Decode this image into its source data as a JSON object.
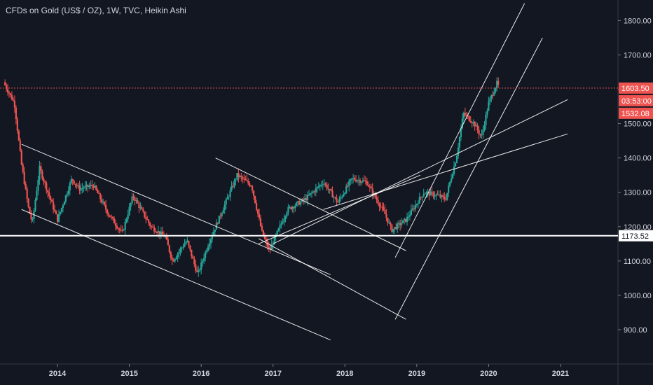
{
  "header": {
    "title": "CFDs on Gold (US$ / OZ), 1W, TVC, Heikin Ashi"
  },
  "colors": {
    "background": "#131722",
    "up": "#26a69a",
    "down": "#ef5350",
    "axis_text": "#d1d4dc",
    "drawing": "#ffffff",
    "price_line": "#ef5350"
  },
  "chart_data": {
    "type": "candlestick",
    "style": "Heikin Ashi",
    "timeframe": "1W",
    "symbol": "CFDs on Gold (US$ / OZ)",
    "source": "TVC",
    "x_ticks": [
      "2014",
      "2015",
      "2016",
      "2017",
      "2018",
      "2019",
      "2020",
      "2021"
    ],
    "y_ticks": [
      900,
      1000,
      1100,
      1200,
      1300,
      1400,
      1500,
      1600,
      1700,
      1800
    ],
    "y_tick_labels": [
      "900.00",
      "1000.00",
      "1100.00",
      "1200.00",
      "1300.00",
      "1400.00",
      "1500.00",
      "1600.00",
      "1700.00",
      "1800.00"
    ],
    "ylim": [
      800,
      1860
    ],
    "xlim": [
      2013.2,
      2021.8
    ],
    "current_price": 1603.5,
    "countdown": "03:53:00",
    "open_price": 1532.08,
    "horizontal_level": 1173.52,
    "price_labels": [
      "1603.50",
      "03:53:00",
      "1532.08",
      "1173.52"
    ],
    "price_path": [
      [
        2013.25,
        1620
      ],
      [
        2013.4,
        1560
      ],
      [
        2013.5,
        1380
      ],
      [
        2013.6,
        1250
      ],
      [
        2013.65,
        1210
      ],
      [
        2013.75,
        1370
      ],
      [
        2013.85,
        1310
      ],
      [
        2014.0,
        1220
      ],
      [
        2014.2,
        1340
      ],
      [
        2014.3,
        1310
      ],
      [
        2014.5,
        1320
      ],
      [
        2014.7,
        1240
      ],
      [
        2014.9,
        1180
      ],
      [
        2015.05,
        1290
      ],
      [
        2015.3,
        1200
      ],
      [
        2015.5,
        1170
      ],
      [
        2015.6,
        1100
      ],
      [
        2015.8,
        1160
      ],
      [
        2015.95,
        1060
      ],
      [
        2016.1,
        1150
      ],
      [
        2016.3,
        1250
      ],
      [
        2016.5,
        1350
      ],
      [
        2016.7,
        1320
      ],
      [
        2016.85,
        1180
      ],
      [
        2016.95,
        1130
      ],
      [
        2017.2,
        1250
      ],
      [
        2017.45,
        1280
      ],
      [
        2017.7,
        1330
      ],
      [
        2017.9,
        1270
      ],
      [
        2018.1,
        1340
      ],
      [
        2018.3,
        1330
      ],
      [
        2018.55,
        1240
      ],
      [
        2018.65,
        1190
      ],
      [
        2018.85,
        1220
      ],
      [
        2019.1,
        1300
      ],
      [
        2019.3,
        1290
      ],
      [
        2019.4,
        1280
      ],
      [
        2019.55,
        1400
      ],
      [
        2019.65,
        1530
      ],
      [
        2019.8,
        1500
      ],
      [
        2019.9,
        1460
      ],
      [
        2020.0,
        1560
      ],
      [
        2020.12,
        1620
      ],
      [
        2020.15,
        1600
      ]
    ],
    "trend_lines": [
      {
        "from": [
          2013.5,
          1440
        ],
        "to": [
          2017.8,
          1060
        ]
      },
      {
        "from": [
          2013.5,
          1250
        ],
        "to": [
          2017.8,
          870
        ]
      },
      {
        "from": [
          2016.2,
          1400
        ],
        "to": [
          2018.85,
          1130
        ]
      },
      {
        "from": [
          2016.8,
          1150
        ],
        "to": [
          2019.05,
          1350
        ]
      },
      {
        "from": [
          2016.8,
          1165
        ],
        "to": [
          2018.85,
          930
        ]
      },
      {
        "from": [
          2017.0,
          1150
        ],
        "to": [
          2021.1,
          1570
        ]
      },
      {
        "from": [
          2017.7,
          1250
        ],
        "to": [
          2021.1,
          1470
        ]
      },
      {
        "from": [
          2018.7,
          1110
        ],
        "to": [
          2020.5,
          1850
        ]
      },
      {
        "from": [
          2018.7,
          930
        ],
        "to": [
          2020.75,
          1750
        ]
      }
    ]
  }
}
